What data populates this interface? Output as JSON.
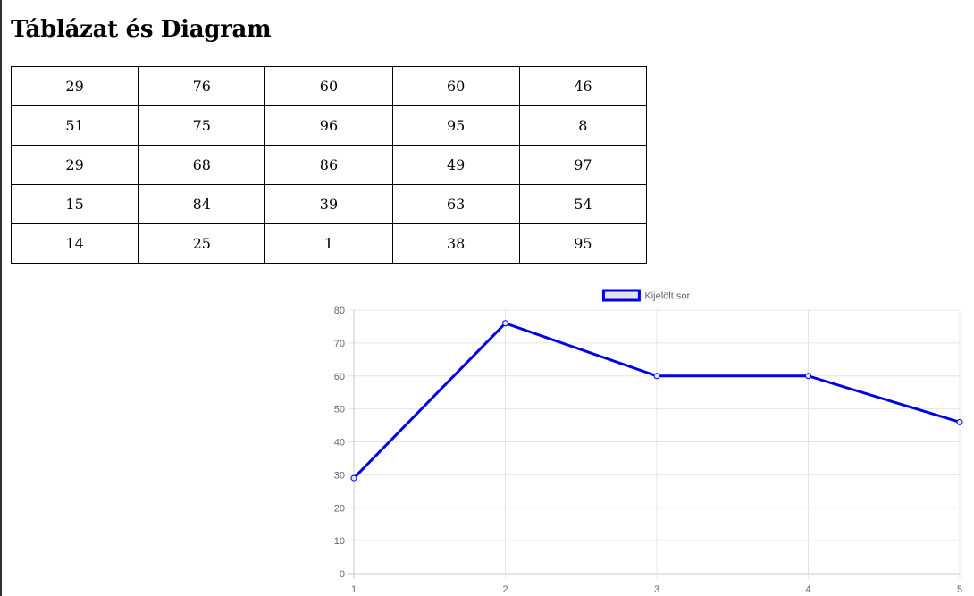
{
  "page": {
    "title": "Táblázat és Diagram"
  },
  "table": {
    "rows": [
      [
        29,
        76,
        60,
        60,
        46
      ],
      [
        51,
        75,
        96,
        95,
        8
      ],
      [
        29,
        68,
        86,
        49,
        97
      ],
      [
        15,
        84,
        39,
        63,
        54
      ],
      [
        14,
        25,
        1,
        38,
        95
      ]
    ]
  },
  "chart_data": {
    "type": "line",
    "title": "",
    "xlabel": "",
    "ylabel": "",
    "x": [
      "1",
      "2",
      "3",
      "4",
      "5"
    ],
    "ylim": [
      0,
      80
    ],
    "yticks": [
      0,
      10,
      20,
      30,
      40,
      50,
      60,
      70,
      80
    ],
    "grid": true,
    "legend_position": "top",
    "series": [
      {
        "name": "Kijelölt sor",
        "values": [
          29,
          76,
          60,
          60,
          46
        ],
        "color": "#0000e6",
        "fill": "#e3e3ec"
      }
    ]
  }
}
